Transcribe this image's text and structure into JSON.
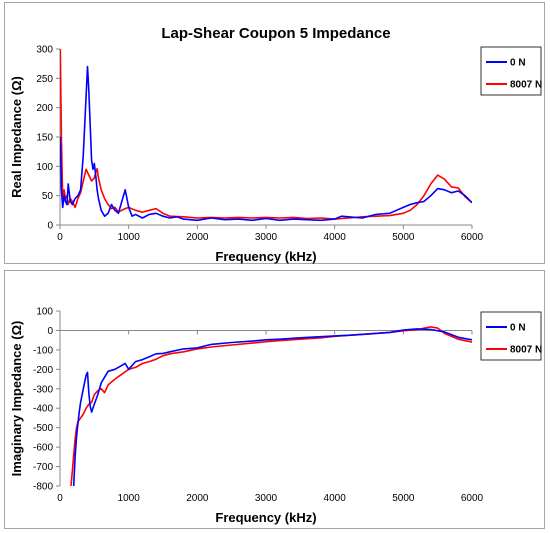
{
  "chart_data": [
    {
      "type": "line",
      "title": "Lap-Shear Coupon 5 Impedance",
      "xlabel": "Frequency (kHz)",
      "ylabel": "Real Impedance (Ω)",
      "xlim": [
        0,
        6000
      ],
      "ylim": [
        0,
        300
      ],
      "xticks": [
        "0",
        "1000",
        "2000",
        "3000",
        "4000",
        "5000",
        "6000"
      ],
      "yticks": [
        "0",
        "50",
        "100",
        "150",
        "200",
        "250",
        "300"
      ],
      "legend": "right",
      "series": [
        {
          "name": "0 N",
          "color": "#0000ff",
          "x": [
            5,
            20,
            40,
            60,
            80,
            100,
            120,
            150,
            180,
            220,
            260,
            300,
            340,
            380,
            400,
            420,
            440,
            460,
            480,
            500,
            520,
            540,
            560,
            600,
            650,
            700,
            750,
            800,
            850,
            900,
            950,
            1000,
            1050,
            1100,
            1200,
            1300,
            1400,
            1500,
            1600,
            1700,
            1800,
            2000,
            2200,
            2400,
            2600,
            2800,
            3000,
            3200,
            3400,
            3600,
            3800,
            4000,
            4100,
            4200,
            4400,
            4600,
            4800,
            4900,
            5000,
            5100,
            5200,
            5300,
            5400,
            5500,
            5600,
            5700,
            5800,
            5900,
            6000
          ],
          "y": [
            150,
            60,
            30,
            50,
            40,
            35,
            70,
            40,
            35,
            45,
            50,
            60,
            120,
            220,
            270,
            230,
            170,
            110,
            95,
            105,
            85,
            60,
            45,
            25,
            15,
            20,
            35,
            25,
            20,
            40,
            60,
            30,
            15,
            18,
            12,
            18,
            20,
            15,
            12,
            14,
            10,
            8,
            12,
            9,
            10,
            8,
            11,
            8,
            10,
            9,
            8,
            10,
            15,
            14,
            12,
            18,
            20,
            25,
            30,
            35,
            38,
            40,
            50,
            62,
            60,
            55,
            58,
            50,
            38
          ]
        },
        {
          "name": "8007 N",
          "color": "#ff0000",
          "x": [
            5,
            20,
            40,
            60,
            80,
            100,
            120,
            150,
            180,
            220,
            260,
            300,
            340,
            380,
            420,
            460,
            500,
            520,
            540,
            560,
            580,
            600,
            650,
            700,
            750,
            800,
            850,
            900,
            950,
            1000,
            1100,
            1200,
            1300,
            1400,
            1500,
            1600,
            1800,
            2000,
            2200,
            2400,
            2600,
            2800,
            3000,
            3200,
            3400,
            3600,
            3800,
            4000,
            4200,
            4400,
            4600,
            4800,
            4900,
            5000,
            5100,
            5200,
            5300,
            5400,
            5500,
            5600,
            5700,
            5800,
            5900,
            6000
          ],
          "y": [
            300,
            150,
            40,
            60,
            45,
            50,
            35,
            45,
            40,
            30,
            45,
            55,
            75,
            95,
            85,
            75,
            80,
            90,
            96,
            80,
            70,
            60,
            45,
            35,
            28,
            30,
            22,
            25,
            28,
            30,
            25,
            22,
            25,
            28,
            20,
            15,
            14,
            12,
            13,
            12,
            13,
            12,
            13,
            12,
            13,
            11,
            12,
            10,
            12,
            14,
            15,
            16,
            18,
            20,
            25,
            35,
            50,
            70,
            85,
            78,
            65,
            63,
            48,
            38
          ]
        }
      ]
    },
    {
      "type": "line",
      "title": "",
      "xlabel": "Frequency (kHz)",
      "ylabel": "Imaginary Impedance (Ω)",
      "xlim": [
        0,
        6000
      ],
      "ylim": [
        -800,
        100
      ],
      "xticks": [
        "0",
        "1000",
        "2000",
        "3000",
        "4000",
        "5000",
        "6000"
      ],
      "yticks": [
        "100",
        "0",
        "-100",
        "-200",
        "-300",
        "-400",
        "-500",
        "-600",
        "-700",
        "-800"
      ],
      "legend": "right",
      "series": [
        {
          "name": "0 N",
          "color": "#0000ff",
          "x": [
            200,
            220,
            240,
            260,
            280,
            300,
            340,
            380,
            400,
            420,
            440,
            460,
            500,
            550,
            600,
            700,
            800,
            900,
            950,
            1000,
            1100,
            1200,
            1300,
            1400,
            1500,
            1600,
            1800,
            2000,
            2200,
            2500,
            2800,
            3000,
            3200,
            3500,
            3800,
            4000,
            4200,
            4500,
            4800,
            5000,
            5200,
            5400,
            5600,
            5800,
            6000
          ],
          "y": [
            -800,
            -650,
            -550,
            -480,
            -420,
            -370,
            -300,
            -230,
            -215,
            -320,
            -390,
            -420,
            -380,
            -330,
            -270,
            -210,
            -200,
            -180,
            -170,
            -200,
            -160,
            -150,
            -135,
            -120,
            -118,
            -110,
            -95,
            -90,
            -72,
            -62,
            -55,
            -48,
            -45,
            -38,
            -32,
            -28,
            -25,
            -18,
            -10,
            2,
            8,
            5,
            -8,
            -35,
            -48
          ]
        },
        {
          "name": "8007 N",
          "color": "#ff0000",
          "x": [
            160,
            180,
            200,
            220,
            240,
            260,
            300,
            340,
            380,
            420,
            460,
            500,
            550,
            600,
            650,
            700,
            800,
            900,
            1000,
            1100,
            1200,
            1300,
            1400,
            1500,
            1600,
            1800,
            2000,
            2200,
            2500,
            2800,
            3000,
            3200,
            3500,
            3800,
            4000,
            4200,
            4500,
            4800,
            5000,
            5200,
            5400,
            5500,
            5600,
            5800,
            6000
          ],
          "y": [
            -800,
            -720,
            -640,
            -560,
            -500,
            -470,
            -450,
            -430,
            -400,
            -380,
            -370,
            -330,
            -310,
            -300,
            -320,
            -280,
            -250,
            -225,
            -200,
            -190,
            -170,
            -160,
            -148,
            -130,
            -120,
            -110,
            -95,
            -85,
            -75,
            -65,
            -58,
            -52,
            -45,
            -38,
            -30,
            -25,
            -18,
            -10,
            -2,
            5,
            18,
            12,
            -15,
            -45,
            -60
          ]
        }
      ]
    }
  ]
}
